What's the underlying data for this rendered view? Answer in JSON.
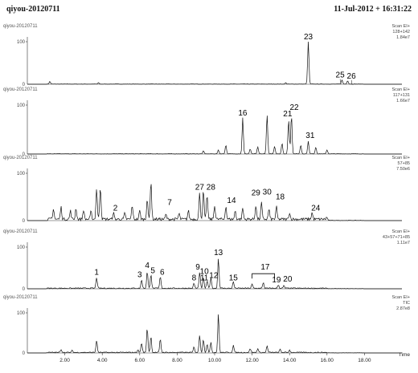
{
  "header": {
    "title": "qiyou-20120711",
    "date": "11-Jul-2012 + 16:31:22"
  },
  "chart_data": {
    "type": "line",
    "xlabel": "Time",
    "xlim": [
      0,
      20
    ],
    "x_ticks": [
      "2.00",
      "4.00",
      "6.00",
      "8.00",
      "10.00",
      "12.00",
      "14.00",
      "16.00",
      "18.00"
    ],
    "y_ticks": [
      "0",
      "100"
    ],
    "panels": [
      {
        "name": "qiyou-20120711",
        "scan_info": [
          "Scan EI+",
          "128+142",
          "1.84e7"
        ],
        "peaks": [
          {
            "t": 1.2,
            "h": 6
          },
          {
            "t": 3.8,
            "h": 3
          },
          {
            "t": 13.8,
            "h": 3
          },
          {
            "t": 15.0,
            "h": 100
          },
          {
            "t": 16.8,
            "h": 10
          },
          {
            "t": 17.1,
            "h": 8
          }
        ],
        "labels": [
          {
            "text": "23",
            "t": 15.0,
            "h": 100
          },
          {
            "text": "25",
            "t": 16.7,
            "h": 10
          },
          {
            "text": "26",
            "t": 17.3,
            "h": 8
          }
        ]
      },
      {
        "name": "qiyou-20120711",
        "scan_info": [
          "Scan EI+",
          "117+131",
          "1.66e7"
        ],
        "peaks": [
          {
            "t": 9.4,
            "h": 6
          },
          {
            "t": 10.2,
            "h": 8
          },
          {
            "t": 10.6,
            "h": 18
          },
          {
            "t": 11.5,
            "h": 74
          },
          {
            "t": 11.9,
            "h": 10
          },
          {
            "t": 12.3,
            "h": 14
          },
          {
            "t": 12.8,
            "h": 80
          },
          {
            "t": 13.2,
            "h": 15
          },
          {
            "t": 13.6,
            "h": 22
          },
          {
            "t": 13.95,
            "h": 70
          },
          {
            "t": 14.1,
            "h": 80
          },
          {
            "t": 14.6,
            "h": 18
          },
          {
            "t": 15.0,
            "h": 26
          },
          {
            "t": 15.4,
            "h": 14
          },
          {
            "t": 16.0,
            "h": 8
          }
        ],
        "labels": [
          {
            "text": "16",
            "t": 11.5,
            "h": 74
          },
          {
            "text": "21",
            "t": 13.9,
            "h": 72
          },
          {
            "text": "22",
            "t": 14.25,
            "h": 85
          },
          {
            "text": "31",
            "t": 15.1,
            "h": 28
          }
        ]
      },
      {
        "name": "qiyou-20120711",
        "scan_info": [
          "Scan EI+",
          "57+85",
          "7.50e6"
        ],
        "peaks": [
          {
            "t": 1.4,
            "h": 22
          },
          {
            "t": 1.8,
            "h": 26
          },
          {
            "t": 2.3,
            "h": 18
          },
          {
            "t": 2.6,
            "h": 24
          },
          {
            "t": 3.0,
            "h": 20
          },
          {
            "t": 3.4,
            "h": 16
          },
          {
            "t": 3.7,
            "h": 66
          },
          {
            "t": 3.9,
            "h": 70
          },
          {
            "t": 4.6,
            "h": 14
          },
          {
            "t": 5.2,
            "h": 12
          },
          {
            "t": 5.6,
            "h": 30
          },
          {
            "t": 6.0,
            "h": 18
          },
          {
            "t": 6.4,
            "h": 44
          },
          {
            "t": 6.6,
            "h": 82
          },
          {
            "t": 7.4,
            "h": 10
          },
          {
            "t": 8.1,
            "h": 12
          },
          {
            "t": 8.6,
            "h": 18
          },
          {
            "t": 9.2,
            "h": 55
          },
          {
            "t": 9.4,
            "h": 60
          },
          {
            "t": 9.6,
            "h": 52
          },
          {
            "t": 10.0,
            "h": 30
          },
          {
            "t": 10.6,
            "h": 28
          },
          {
            "t": 11.1,
            "h": 18
          },
          {
            "t": 11.5,
            "h": 24
          },
          {
            "t": 12.2,
            "h": 30
          },
          {
            "t": 12.5,
            "h": 36
          },
          {
            "t": 12.9,
            "h": 22
          },
          {
            "t": 13.3,
            "h": 26
          },
          {
            "t": 14.0,
            "h": 14
          },
          {
            "t": 15.2,
            "h": 14
          },
          {
            "t": 16.0,
            "h": 6
          }
        ],
        "labels": [
          {
            "text": "2",
            "t": 4.7,
            "h": 16
          },
          {
            "text": "7",
            "t": 7.6,
            "h": 28
          },
          {
            "text": "27",
            "t": 9.2,
            "h": 60
          },
          {
            "text": "28",
            "t": 9.8,
            "h": 60
          },
          {
            "text": "14",
            "t": 10.9,
            "h": 32
          },
          {
            "text": "29",
            "t": 12.2,
            "h": 48
          },
          {
            "text": "30",
            "t": 12.8,
            "h": 50
          },
          {
            "text": "18",
            "t": 13.5,
            "h": 40
          },
          {
            "text": "24",
            "t": 15.4,
            "h": 16
          }
        ]
      },
      {
        "name": "qiyou-20120711",
        "scan_info": [
          "Scan EI+",
          "43+57+71+85",
          "1.11e7"
        ],
        "peaks": [
          {
            "t": 3.7,
            "h": 26
          },
          {
            "t": 6.1,
            "h": 20
          },
          {
            "t": 6.4,
            "h": 40
          },
          {
            "t": 6.6,
            "h": 34
          },
          {
            "t": 7.1,
            "h": 28
          },
          {
            "t": 8.9,
            "h": 12
          },
          {
            "t": 9.2,
            "h": 38
          },
          {
            "t": 9.4,
            "h": 26
          },
          {
            "t": 9.6,
            "h": 18
          },
          {
            "t": 9.8,
            "h": 26
          },
          {
            "t": 10.2,
            "h": 72
          },
          {
            "t": 11.0,
            "h": 16
          },
          {
            "t": 12.0,
            "h": 10
          },
          {
            "t": 12.6,
            "h": 14
          },
          {
            "t": 13.4,
            "h": 8
          },
          {
            "t": 13.7,
            "h": 6
          }
        ],
        "labels": [
          {
            "text": "1",
            "t": 3.7,
            "h": 28
          },
          {
            "text": "3",
            "t": 6.0,
            "h": 22
          },
          {
            "text": "4",
            "t": 6.4,
            "h": 44
          },
          {
            "text": "5",
            "t": 6.7,
            "h": 32
          },
          {
            "text": "6",
            "t": 7.2,
            "h": 28
          },
          {
            "text": "8",
            "t": 8.9,
            "h": 14
          },
          {
            "text": "9",
            "t": 9.1,
            "h": 40
          },
          {
            "text": "10",
            "t": 9.45,
            "h": 30
          },
          {
            "text": "11",
            "t": 9.45,
            "h": 14
          },
          {
            "text": "12",
            "t": 9.95,
            "h": 20
          },
          {
            "text": "13",
            "t": 10.2,
            "h": 75
          },
          {
            "text": "15",
            "t": 11.0,
            "h": 14
          },
          {
            "text": "17",
            "t": 12.7,
            "h": 40
          },
          {
            "text": "19",
            "t": 13.3,
            "h": 10
          },
          {
            "text": "20",
            "t": 13.9,
            "h": 12
          }
        ]
      },
      {
        "name": "qiyou-20120711",
        "scan_info": [
          "Scan EI+",
          "TIC",
          "2.87e8"
        ],
        "peaks": [
          {
            "t": 1.8,
            "h": 8
          },
          {
            "t": 2.4,
            "h": 5
          },
          {
            "t": 3.7,
            "h": 30
          },
          {
            "t": 5.9,
            "h": 6
          },
          {
            "t": 6.1,
            "h": 24
          },
          {
            "t": 6.4,
            "h": 62
          },
          {
            "t": 6.6,
            "h": 40
          },
          {
            "t": 7.1,
            "h": 34
          },
          {
            "t": 8.9,
            "h": 14
          },
          {
            "t": 9.2,
            "h": 44
          },
          {
            "t": 9.4,
            "h": 34
          },
          {
            "t": 9.6,
            "h": 20
          },
          {
            "t": 9.8,
            "h": 26
          },
          {
            "t": 10.2,
            "h": 96
          },
          {
            "t": 11.0,
            "h": 18
          },
          {
            "t": 11.9,
            "h": 10
          },
          {
            "t": 12.3,
            "h": 10
          },
          {
            "t": 12.8,
            "h": 16
          },
          {
            "t": 13.5,
            "h": 8
          },
          {
            "t": 14.0,
            "h": 6
          }
        ],
        "labels": []
      }
    ]
  }
}
